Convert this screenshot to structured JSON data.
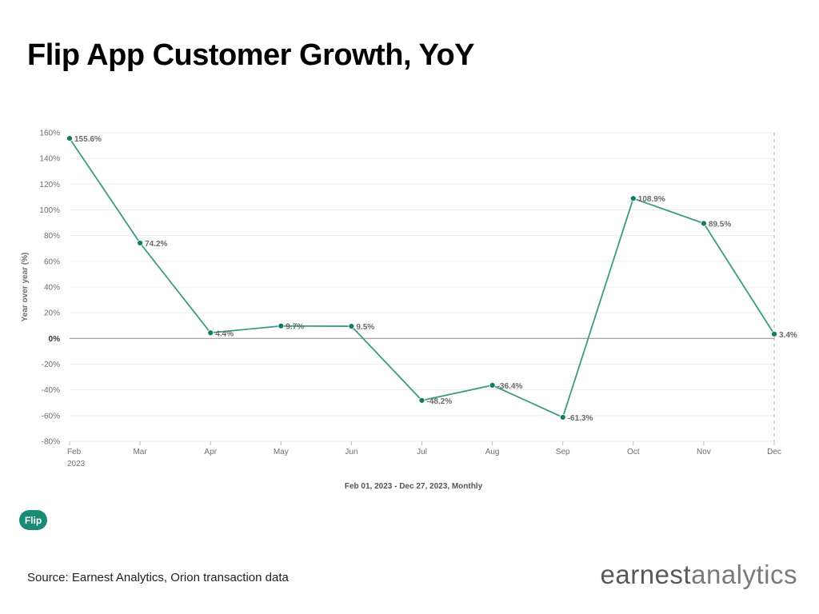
{
  "title": "Flip App Customer Growth, YoY",
  "source": "Source: Earnest Analytics, Orion transaction data",
  "logo": {
    "part1": "earnest",
    "part2": "analytics"
  },
  "legend": {
    "label": "Flip",
    "color": "#1b8a74"
  },
  "colors": {
    "line": "#3a9a86",
    "marker": "#137a66",
    "grid": "#ececec",
    "zero": "#9a9a9a",
    "tick": "#6e6e6e"
  },
  "chart_data": {
    "type": "line",
    "categories": [
      "Feb",
      "Mar",
      "Apr",
      "May",
      "Jun",
      "Jul",
      "Aug",
      "Sep",
      "Oct",
      "Nov",
      "Dec"
    ],
    "x_sub_label": "2023",
    "series": [
      {
        "name": "Flip",
        "values": [
          155.6,
          74.2,
          4.4,
          9.7,
          9.5,
          -48.2,
          -36.4,
          -61.3,
          108.9,
          89.5,
          3.4
        ]
      }
    ],
    "data_labels": [
      "155.6%",
      "74.2%",
      "4.4%",
      "9.7%",
      "9.5%",
      "-48.2%",
      "-36.4%",
      "-61.3%",
      "108.9%",
      "89.5%",
      "3.4%"
    ],
    "ylabel": "Year over year (%)",
    "xlabel": "Feb 01, 2023 - Dec 27, 2023, Monthly",
    "ylim": [
      -80,
      160
    ],
    "yticks": [
      -80,
      -60,
      -40,
      -20,
      0,
      20,
      40,
      60,
      80,
      100,
      120,
      140,
      160
    ],
    "ytick_labels": [
      "-80%",
      "-60%",
      "-40%",
      "-20%",
      "0%",
      "20%",
      "40%",
      "60%",
      "80%",
      "100%",
      "120%",
      "140%",
      "160%"
    ],
    "grid": true,
    "reference_line": "Dec"
  }
}
